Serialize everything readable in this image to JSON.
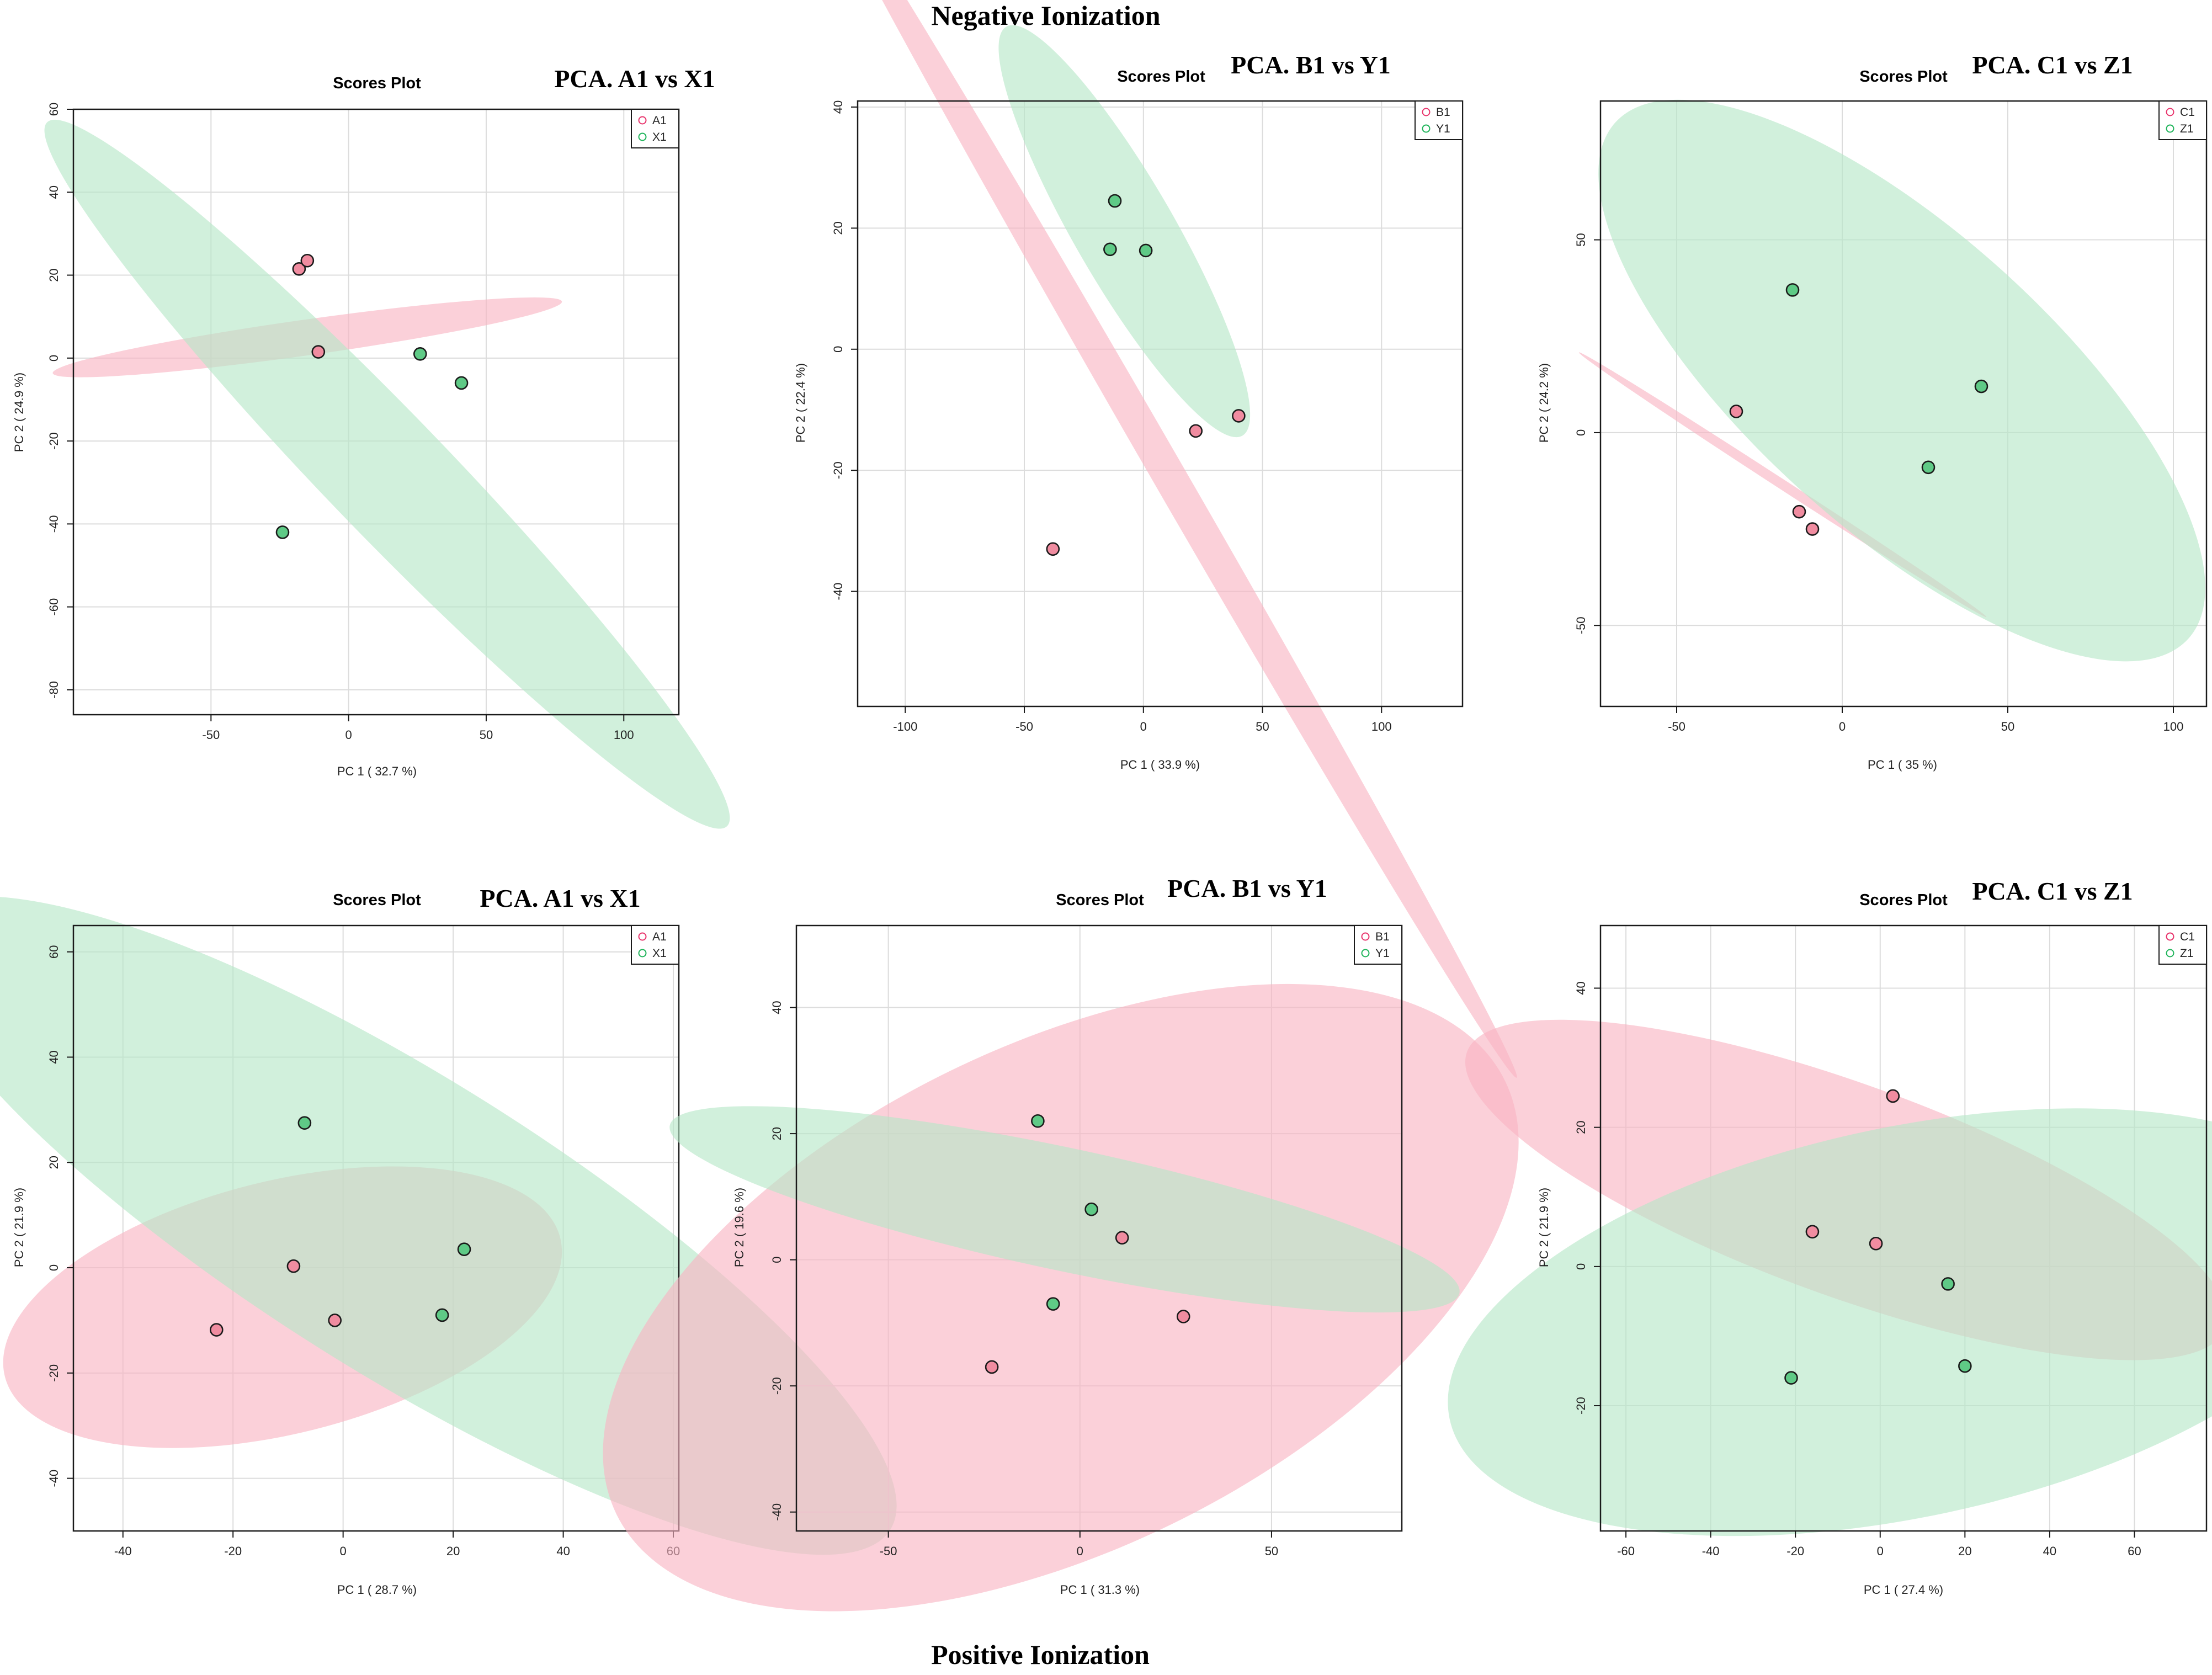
{
  "header": {
    "top_title": "Negative Ionization",
    "bottom_title": "Positive Ionization"
  },
  "colors": {
    "group_a": "#f9b3c2",
    "group_a_point": "#f08ca0",
    "group_a_marker": "#e8336b",
    "group_b": "#b5e6c7",
    "group_b_point": "#5fca86",
    "group_b_marker": "#1fb45a"
  },
  "chart_data": [
    {
      "type": "scatter",
      "panel": "negative-1",
      "scores_title": "Scores Plot",
      "title": "PCA. A1 vs X1",
      "xlabel": "PC 1 ( 32.7 %)",
      "ylabel": "PC 2 ( 24.9 %)",
      "xlim": [
        -100,
        120
      ],
      "ylim": [
        -86,
        60
      ],
      "xticks": [
        -50,
        0,
        50,
        100
      ],
      "yticks": [
        -80,
        -60,
        -40,
        -20,
        0,
        20,
        40,
        60
      ],
      "legend": [
        "A1",
        "X1"
      ],
      "series": [
        {
          "name": "A1",
          "points": [
            [
              -18,
              21.5
            ],
            [
              -15,
              23.5
            ],
            [
              -11,
              1.5
            ]
          ],
          "ellipse": {
            "center": [
              -15,
              5
            ],
            "axes": [
              6.5,
              62
            ],
            "angle": 98
          }
        },
        {
          "name": "X1",
          "points": [
            [
              26,
              1
            ],
            [
              41,
              -6
            ],
            [
              -24,
              -42
            ]
          ],
          "ellipse": {
            "center": [
              14,
              -28
            ],
            "axes": [
              22,
              118
            ],
            "angle": 44
          }
        }
      ]
    },
    {
      "type": "scatter",
      "panel": "negative-2",
      "scores_title": "Scores Plot",
      "title": "PCA. B1 vs Y1",
      "xlabel": "PC 1 ( 33.9 %)",
      "ylabel": "PC 2 ( 22.4 %)",
      "xlim": [
        -120,
        134
      ],
      "ylim": [
        -59,
        41
      ],
      "xticks": [
        -100,
        -50,
        0,
        50,
        100
      ],
      "yticks": [
        -40,
        -20,
        0,
        20,
        40
      ],
      "legend": [
        "B1",
        "Y1"
      ],
      "series": [
        {
          "name": "B1",
          "points": [
            [
              22,
              -13.5
            ],
            [
              40,
              -11
            ],
            [
              -38,
              -33
            ]
          ],
          "ellipse": {
            "center": [
              8,
              -19
            ],
            "axes": [
              7,
              117
            ],
            "angle": 30
          }
        },
        {
          "name": "Y1",
          "points": [
            [
              -12,
              24.5
            ],
            [
              -14,
              16.5
            ],
            [
              1,
              16.3
            ]
          ],
          "ellipse": {
            "center": [
              -8,
              19.5
            ],
            "axes": [
              21,
              39
            ],
            "angle": 30
          }
        }
      ]
    },
    {
      "type": "scatter",
      "panel": "negative-3",
      "scores_title": "Scores Plot",
      "title": "PCA. C1 vs Z1",
      "xlabel": "PC 1 ( 35 %)",
      "ylabel": "PC 2 ( 24.2 %)",
      "xlim": [
        -73,
        110
      ],
      "ylim": [
        -71,
        86
      ],
      "xticks": [
        -50,
        0,
        50,
        100
      ],
      "yticks": [
        -50,
        0,
        50
      ],
      "legend": [
        "C1",
        "Z1"
      ],
      "series": [
        {
          "name": "C1",
          "points": [
            [
              -32,
              5.5
            ],
            [
              -13,
              -20.5
            ],
            [
              -9,
              -25
            ]
          ],
          "ellipse": {
            "center": [
              -18,
              -13.5
            ],
            "axes": [
              1.5,
              63
            ],
            "angle": 57
          }
        },
        {
          "name": "Z1",
          "points": [
            [
              -15,
              37
            ],
            [
              42,
              12
            ],
            [
              26,
              -9
            ]
          ],
          "ellipse": {
            "center": [
              18,
              13.5
            ],
            "axes": [
              45,
              100
            ],
            "angle": 48
          }
        }
      ]
    },
    {
      "type": "scatter",
      "panel": "positive-1",
      "scores_title": "Scores Plot",
      "title": "PCA. A1 vs X1",
      "xlabel": "PC 1 ( 28.7 %)",
      "ylabel": "PC 2 ( 21.9 %)",
      "xlim": [
        -49,
        61
      ],
      "ylim": [
        -50,
        65
      ],
      "xticks": [
        -40,
        -20,
        0,
        20,
        40,
        60
      ],
      "yticks": [
        -40,
        -20,
        0,
        20,
        40,
        60
      ],
      "legend": [
        "A1",
        "X1"
      ],
      "series": [
        {
          "name": "A1",
          "points": [
            [
              -23,
              -11.8
            ],
            [
              -9,
              0.3
            ],
            [
              -1.5,
              -10
            ]
          ],
          "ellipse": {
            "center": [
              -11,
              -7.5
            ],
            "axes": [
              52,
              24
            ],
            "angle": 14
          }
        },
        {
          "name": "X1",
          "points": [
            [
              -7,
              27.5
            ],
            [
              22,
              3.5
            ],
            [
              18,
              -9
            ]
          ],
          "ellipse": {
            "center": [
              11,
              8
            ],
            "axes": [
              27,
              109
            ],
            "angle": 58
          }
        }
      ]
    },
    {
      "type": "scatter",
      "panel": "positive-2",
      "scores_title": "Scores Plot",
      "title": "PCA. B1 vs Y1",
      "xlabel": "PC 1 ( 31.3 %)",
      "ylabel": "PC 2 ( 19.6 %)",
      "xlim": [
        -74,
        84
      ],
      "ylim": [
        -43,
        53
      ],
      "xticks": [
        -50,
        0,
        50
      ],
      "yticks": [
        -40,
        -20,
        0,
        20,
        40
      ],
      "legend": [
        "B1",
        "Y1"
      ],
      "series": [
        {
          "name": "B1",
          "points": [
            [
              -23,
              -17
            ],
            [
              11,
              3.5
            ],
            [
              27,
              -9
            ]
          ],
          "ellipse": {
            "center": [
              -5,
              -6
            ],
            "axes": [
              129,
              40
            ],
            "angle": 26
          }
        },
        {
          "name": "Y1",
          "points": [
            [
              -11,
              22
            ],
            [
              3,
              8
            ],
            [
              -7,
              -7
            ]
          ],
          "ellipse": {
            "center": [
              -4,
              8
            ],
            "axes": [
              16,
              64
            ],
            "angle": 78
          }
        }
      ]
    },
    {
      "type": "scatter",
      "panel": "positive-3",
      "scores_title": "Scores Plot",
      "title": "PCA. C1 vs Z1",
      "xlabel": "PC 1 ( 27.4 %)",
      "ylabel": "PC 2 ( 21.9 %)",
      "xlim": [
        -66,
        77
      ],
      "ylim": [
        -38,
        49
      ],
      "xticks": [
        -60,
        -40,
        -20,
        0,
        20,
        40,
        60
      ],
      "yticks": [
        -20,
        0,
        20,
        40
      ],
      "legend": [
        "C1",
        "Z1"
      ],
      "series": [
        {
          "name": "C1",
          "points": [
            [
              3,
              24.5
            ],
            [
              -16,
              5
            ],
            [
              -1,
              3.3
            ]
          ],
          "ellipse": {
            "center": [
              -8,
              11
            ],
            "axes": [
              25,
              58
            ],
            "angle": 70
          }
        },
        {
          "name": "Z1",
          "points": [
            [
              16,
              -2.5
            ],
            [
              20,
              -14.3
            ],
            [
              -21,
              -16
            ]
          ],
          "ellipse": {
            "center": [
              6,
              -8
            ],
            "axes": [
              110,
              28
            ],
            "angle": 12
          }
        }
      ]
    }
  ]
}
